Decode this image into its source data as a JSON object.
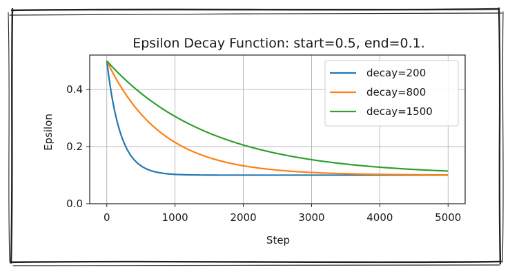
{
  "chart_data": {
    "type": "line",
    "title": "Epsilon Decay Function: start=0.5, end=0.1.",
    "xlabel": "Step",
    "ylabel": "Epsilon",
    "xlim": [
      -250,
      5250
    ],
    "ylim": [
      0.0,
      0.52
    ],
    "xticks": [
      0,
      1000,
      2000,
      3000,
      4000,
      5000
    ],
    "xtick_labels": [
      "0",
      "1000",
      "2000",
      "3000",
      "4000",
      "5000"
    ],
    "yticks": [
      0.0,
      0.2,
      0.4
    ],
    "ytick_labels": [
      "0.0",
      "0.2",
      "0.4"
    ],
    "grid": true,
    "legend_position": "top-right",
    "function": "epsilon = end + (start - end) * exp(-step / decay)",
    "start": 0.5,
    "end": 0.1,
    "x_range": [
      0,
      5000
    ],
    "series": [
      {
        "name": "decay=200",
        "decay": 200,
        "color": "#1f77b4"
      },
      {
        "name": "decay=800",
        "decay": 800,
        "color": "#ff7f0e"
      },
      {
        "name": "decay=1500",
        "decay": 1500,
        "color": "#2ca02c"
      }
    ]
  }
}
